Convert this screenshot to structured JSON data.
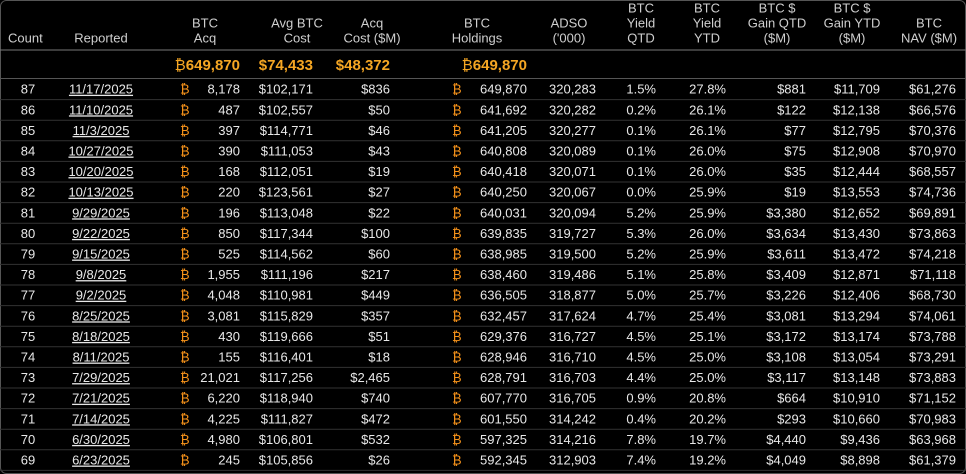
{
  "currency_symbol": "₿",
  "columns": [
    [
      "Count"
    ],
    [
      "Reported"
    ],
    [
      "BTC",
      "Acq"
    ],
    [
      "Avg BTC",
      "Cost"
    ],
    [
      "Acq",
      "Cost ($M)"
    ],
    [
      "BTC",
      "Holdings"
    ],
    [
      "ADSO",
      "('000)"
    ],
    [
      "BTC",
      "Yield",
      "QTD"
    ],
    [
      "BTC",
      "Yield",
      "YTD"
    ],
    [
      "BTC $",
      "Gain QTD",
      "($M)"
    ],
    [
      "BTC $",
      "Gain YTD",
      "($M)"
    ],
    [
      "BTC",
      "NAV ($M)"
    ]
  ],
  "summary": {
    "btc_acq": "649,870",
    "avg_btc_cost": "$74,433",
    "acq_cost": "$48,372",
    "btc_holdings": "649,870"
  },
  "rows": [
    [
      "87",
      "11/17/2025",
      "8,178",
      "$102,171",
      "$836",
      "649,870",
      "320,283",
      "1.5%",
      "27.8%",
      "$881",
      "$11,709",
      "$61,276"
    ],
    [
      "86",
      "11/10/2025",
      "487",
      "$102,557",
      "$50",
      "641,692",
      "320,282",
      "0.2%",
      "26.1%",
      "$122",
      "$12,138",
      "$66,576"
    ],
    [
      "85",
      "11/3/2025",
      "397",
      "$114,771",
      "$46",
      "641,205",
      "320,277",
      "0.1%",
      "26.1%",
      "$77",
      "$12,795",
      "$70,376"
    ],
    [
      "84",
      "10/27/2025",
      "390",
      "$111,053",
      "$43",
      "640,808",
      "320,089",
      "0.1%",
      "26.0%",
      "$75",
      "$12,908",
      "$70,970"
    ],
    [
      "83",
      "10/20/2025",
      "168",
      "$112,051",
      "$19",
      "640,418",
      "320,071",
      "0.1%",
      "26.0%",
      "$35",
      "$12,444",
      "$68,557"
    ],
    [
      "82",
      "10/13/2025",
      "220",
      "$123,561",
      "$27",
      "640,250",
      "320,067",
      "0.0%",
      "25.9%",
      "$19",
      "$13,553",
      "$74,736"
    ],
    [
      "81",
      "9/29/2025",
      "196",
      "$113,048",
      "$22",
      "640,031",
      "320,094",
      "5.2%",
      "25.9%",
      "$3,380",
      "$12,652",
      "$69,891"
    ],
    [
      "80",
      "9/22/2025",
      "850",
      "$117,344",
      "$100",
      "639,835",
      "319,727",
      "5.3%",
      "26.0%",
      "$3,634",
      "$13,430",
      "$73,863"
    ],
    [
      "79",
      "9/15/2025",
      "525",
      "$114,562",
      "$60",
      "638,985",
      "319,500",
      "5.2%",
      "25.9%",
      "$3,611",
      "$13,472",
      "$74,218"
    ],
    [
      "78",
      "9/8/2025",
      "1,955",
      "$111,196",
      "$217",
      "638,460",
      "319,486",
      "5.1%",
      "25.8%",
      "$3,409",
      "$12,871",
      "$71,118"
    ],
    [
      "77",
      "9/2/2025",
      "4,048",
      "$110,981",
      "$449",
      "636,505",
      "318,877",
      "5.0%",
      "25.7%",
      "$3,226",
      "$12,406",
      "$68,730"
    ],
    [
      "76",
      "8/25/2025",
      "3,081",
      "$115,829",
      "$357",
      "632,457",
      "317,624",
      "4.7%",
      "25.4%",
      "$3,081",
      "$13,294",
      "$74,061"
    ],
    [
      "75",
      "8/18/2025",
      "430",
      "$119,666",
      "$51",
      "629,376",
      "316,727",
      "4.5%",
      "25.1%",
      "$3,172",
      "$13,174",
      "$73,788"
    ],
    [
      "74",
      "8/11/2025",
      "155",
      "$116,401",
      "$18",
      "628,946",
      "316,710",
      "4.5%",
      "25.0%",
      "$3,108",
      "$13,054",
      "$73,291"
    ],
    [
      "73",
      "7/29/2025",
      "21,021",
      "$117,256",
      "$2,465",
      "628,791",
      "316,703",
      "4.4%",
      "25.0%",
      "$3,117",
      "$13,148",
      "$73,883"
    ],
    [
      "72",
      "7/21/2025",
      "6,220",
      "$118,940",
      "$740",
      "607,770",
      "316,705",
      "0.9%",
      "20.8%",
      "$664",
      "$10,910",
      "$71,152"
    ],
    [
      "71",
      "7/14/2025",
      "4,225",
      "$111,827",
      "$472",
      "601,550",
      "314,242",
      "0.4%",
      "20.2%",
      "$293",
      "$10,660",
      "$70,983"
    ],
    [
      "70",
      "6/30/2025",
      "4,980",
      "$106,801",
      "$532",
      "597,325",
      "314,216",
      "7.8%",
      "19.7%",
      "$4,440",
      "$9,436",
      "$63,968"
    ],
    [
      "69",
      "6/23/2025",
      "245",
      "$105,856",
      "$26",
      "592,345",
      "312,903",
      "7.4%",
      "19.2%",
      "$4,049",
      "$8,898",
      "$61,379"
    ]
  ]
}
